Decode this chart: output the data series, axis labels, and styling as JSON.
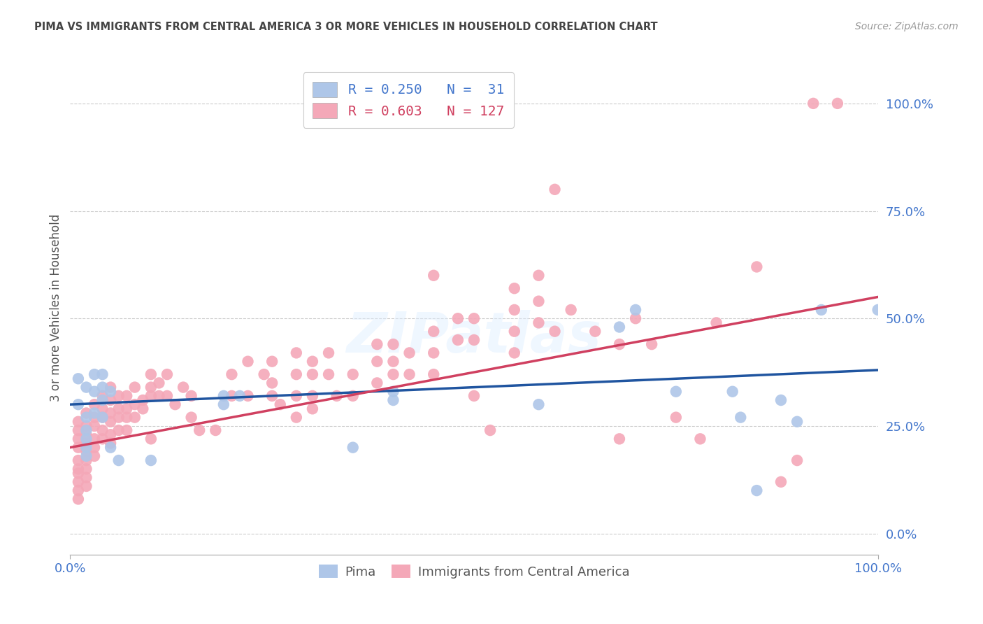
{
  "title": "PIMA VS IMMIGRANTS FROM CENTRAL AMERICA 3 OR MORE VEHICLES IN HOUSEHOLD CORRELATION CHART",
  "source": "Source: ZipAtlas.com",
  "ylabel": "3 or more Vehicles in Household",
  "watermark": "ZIPatlas",
  "xlim": [
    0.0,
    1.0
  ],
  "ylim": [
    -0.05,
    1.1
  ],
  "yticks": [
    0.0,
    0.25,
    0.5,
    0.75,
    1.0
  ],
  "ytick_labels": [
    "0.0%",
    "25.0%",
    "50.0%",
    "75.0%",
    "100.0%"
  ],
  "blue_color": "#aec6e8",
  "pink_color": "#f4a8b8",
  "blue_line_color": "#2055a0",
  "pink_line_color": "#d04060",
  "blue_line": [
    0.0,
    0.3,
    1.0,
    0.38
  ],
  "pink_line": [
    0.0,
    0.2,
    1.0,
    0.55
  ],
  "blue_points": [
    [
      0.01,
      0.36
    ],
    [
      0.01,
      0.3
    ],
    [
      0.02,
      0.34
    ],
    [
      0.02,
      0.27
    ],
    [
      0.02,
      0.24
    ],
    [
      0.02,
      0.22
    ],
    [
      0.02,
      0.2
    ],
    [
      0.02,
      0.18
    ],
    [
      0.03,
      0.37
    ],
    [
      0.03,
      0.33
    ],
    [
      0.03,
      0.28
    ],
    [
      0.04,
      0.37
    ],
    [
      0.04,
      0.34
    ],
    [
      0.04,
      0.31
    ],
    [
      0.04,
      0.27
    ],
    [
      0.05,
      0.33
    ],
    [
      0.05,
      0.2
    ],
    [
      0.06,
      0.17
    ],
    [
      0.1,
      0.17
    ],
    [
      0.19,
      0.32
    ],
    [
      0.19,
      0.3
    ],
    [
      0.21,
      0.32
    ],
    [
      0.35,
      0.2
    ],
    [
      0.4,
      0.33
    ],
    [
      0.4,
      0.31
    ],
    [
      0.58,
      0.3
    ],
    [
      0.68,
      0.48
    ],
    [
      0.7,
      0.52
    ],
    [
      0.75,
      0.33
    ],
    [
      0.82,
      0.33
    ],
    [
      0.83,
      0.27
    ],
    [
      0.85,
      0.1
    ],
    [
      0.88,
      0.31
    ],
    [
      0.9,
      0.26
    ],
    [
      0.93,
      0.52
    ],
    [
      1.0,
      0.52
    ]
  ],
  "pink_points": [
    [
      0.01,
      0.22
    ],
    [
      0.01,
      0.24
    ],
    [
      0.01,
      0.26
    ],
    [
      0.01,
      0.2
    ],
    [
      0.01,
      0.17
    ],
    [
      0.01,
      0.15
    ],
    [
      0.01,
      0.14
    ],
    [
      0.01,
      0.12
    ],
    [
      0.01,
      0.1
    ],
    [
      0.01,
      0.08
    ],
    [
      0.02,
      0.28
    ],
    [
      0.02,
      0.25
    ],
    [
      0.02,
      0.23
    ],
    [
      0.02,
      0.21
    ],
    [
      0.02,
      0.19
    ],
    [
      0.02,
      0.17
    ],
    [
      0.02,
      0.15
    ],
    [
      0.02,
      0.13
    ],
    [
      0.02,
      0.11
    ],
    [
      0.03,
      0.3
    ],
    [
      0.03,
      0.27
    ],
    [
      0.03,
      0.25
    ],
    [
      0.03,
      0.22
    ],
    [
      0.03,
      0.2
    ],
    [
      0.03,
      0.18
    ],
    [
      0.04,
      0.32
    ],
    [
      0.04,
      0.29
    ],
    [
      0.04,
      0.27
    ],
    [
      0.04,
      0.24
    ],
    [
      0.04,
      0.22
    ],
    [
      0.05,
      0.34
    ],
    [
      0.05,
      0.31
    ],
    [
      0.05,
      0.28
    ],
    [
      0.05,
      0.26
    ],
    [
      0.05,
      0.23
    ],
    [
      0.05,
      0.21
    ],
    [
      0.06,
      0.32
    ],
    [
      0.06,
      0.29
    ],
    [
      0.06,
      0.27
    ],
    [
      0.06,
      0.24
    ],
    [
      0.07,
      0.32
    ],
    [
      0.07,
      0.29
    ],
    [
      0.07,
      0.27
    ],
    [
      0.07,
      0.24
    ],
    [
      0.08,
      0.34
    ],
    [
      0.08,
      0.3
    ],
    [
      0.08,
      0.27
    ],
    [
      0.09,
      0.31
    ],
    [
      0.09,
      0.29
    ],
    [
      0.1,
      0.37
    ],
    [
      0.1,
      0.34
    ],
    [
      0.1,
      0.32
    ],
    [
      0.1,
      0.22
    ],
    [
      0.11,
      0.35
    ],
    [
      0.11,
      0.32
    ],
    [
      0.12,
      0.37
    ],
    [
      0.12,
      0.32
    ],
    [
      0.13,
      0.3
    ],
    [
      0.14,
      0.34
    ],
    [
      0.15,
      0.32
    ],
    [
      0.15,
      0.27
    ],
    [
      0.16,
      0.24
    ],
    [
      0.18,
      0.24
    ],
    [
      0.2,
      0.37
    ],
    [
      0.2,
      0.32
    ],
    [
      0.22,
      0.4
    ],
    [
      0.22,
      0.32
    ],
    [
      0.24,
      0.37
    ],
    [
      0.25,
      0.4
    ],
    [
      0.25,
      0.35
    ],
    [
      0.25,
      0.32
    ],
    [
      0.26,
      0.3
    ],
    [
      0.28,
      0.42
    ],
    [
      0.28,
      0.37
    ],
    [
      0.28,
      0.32
    ],
    [
      0.28,
      0.27
    ],
    [
      0.3,
      0.4
    ],
    [
      0.3,
      0.37
    ],
    [
      0.3,
      0.32
    ],
    [
      0.3,
      0.29
    ],
    [
      0.32,
      0.42
    ],
    [
      0.32,
      0.37
    ],
    [
      0.33,
      0.32
    ],
    [
      0.35,
      0.37
    ],
    [
      0.35,
      0.32
    ],
    [
      0.38,
      0.44
    ],
    [
      0.38,
      0.4
    ],
    [
      0.38,
      0.35
    ],
    [
      0.4,
      0.44
    ],
    [
      0.4,
      0.4
    ],
    [
      0.4,
      0.37
    ],
    [
      0.42,
      0.42
    ],
    [
      0.42,
      0.37
    ],
    [
      0.45,
      0.47
    ],
    [
      0.45,
      0.42
    ],
    [
      0.45,
      0.37
    ],
    [
      0.48,
      0.5
    ],
    [
      0.48,
      0.45
    ],
    [
      0.5,
      0.5
    ],
    [
      0.5,
      0.45
    ],
    [
      0.5,
      0.32
    ],
    [
      0.52,
      0.24
    ],
    [
      0.55,
      0.57
    ],
    [
      0.55,
      0.52
    ],
    [
      0.55,
      0.47
    ],
    [
      0.55,
      0.42
    ],
    [
      0.58,
      0.54
    ],
    [
      0.58,
      0.49
    ],
    [
      0.6,
      0.47
    ],
    [
      0.6,
      0.8
    ],
    [
      0.62,
      0.52
    ],
    [
      0.65,
      0.47
    ],
    [
      0.68,
      0.44
    ],
    [
      0.68,
      0.22
    ],
    [
      0.7,
      0.5
    ],
    [
      0.72,
      0.44
    ],
    [
      0.75,
      0.27
    ],
    [
      0.78,
      0.22
    ],
    [
      0.8,
      0.49
    ],
    [
      0.85,
      0.62
    ],
    [
      0.88,
      0.12
    ],
    [
      0.9,
      0.17
    ],
    [
      0.92,
      1.0
    ],
    [
      0.95,
      1.0
    ],
    [
      0.58,
      0.6
    ],
    [
      0.45,
      0.6
    ]
  ],
  "background_color": "#ffffff",
  "grid_color": "#cccccc",
  "title_color": "#444444",
  "tick_label_color": "#4477cc",
  "ylabel_color": "#555555"
}
